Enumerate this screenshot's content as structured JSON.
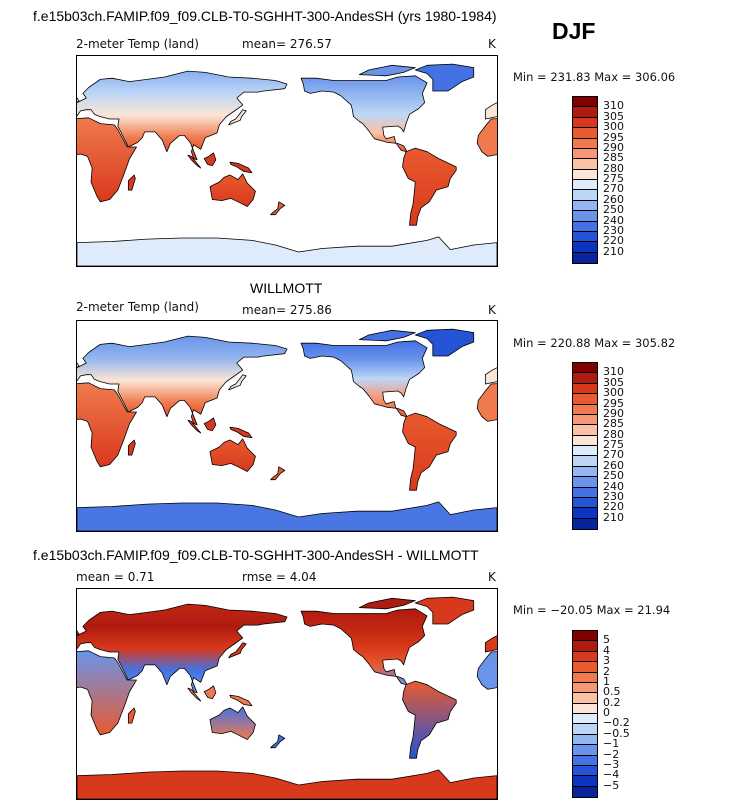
{
  "header": {
    "title": "f.e15b03ch.FAMIP.f09_f09.CLB-T0-SGHHT-300-AndesSH (yrs 1980-1984)",
    "season": "DJF"
  },
  "panels": [
    {
      "id": "model",
      "variable": "2-meter Temp (land)",
      "mean_text": "mean= 276.57",
      "units": "K",
      "minmax_text": "Min = 231.83 Max = 306.06",
      "colorbar": {
        "labels": [
          "310",
          "305",
          "300",
          "295",
          "290",
          "285",
          "280",
          "275",
          "270",
          "260",
          "250",
          "240",
          "230",
          "220",
          "210"
        ],
        "colors": [
          "#800000",
          "#b01a10",
          "#d8391c",
          "#e85a2f",
          "#f07a4e",
          "#f69878",
          "#f9c2a4",
          "#fbe5d6",
          "#ddebfa",
          "#bdd6f6",
          "#93b6f0",
          "#6994ea",
          "#4472e4",
          "#2453d6",
          "#0c34bf",
          "#08239b"
        ]
      }
    },
    {
      "id": "obs",
      "label": "WILLMOTT",
      "variable": "2-meter Temp (land)",
      "mean_text": "mean= 275.86",
      "units": "K",
      "minmax_text": "Min = 220.88 Max = 305.82",
      "colorbar": {
        "labels": [
          "310",
          "305",
          "300",
          "295",
          "290",
          "285",
          "280",
          "275",
          "270",
          "260",
          "250",
          "240",
          "230",
          "220",
          "210"
        ],
        "colors": [
          "#800000",
          "#b01a10",
          "#d8391c",
          "#e85a2f",
          "#f07a4e",
          "#f69878",
          "#f9c2a4",
          "#fbe5d6",
          "#ddebfa",
          "#bdd6f6",
          "#93b6f0",
          "#6994ea",
          "#4472e4",
          "#2453d6",
          "#0c34bf",
          "#08239b"
        ]
      }
    },
    {
      "id": "diff",
      "label": "f.e15b03ch.FAMIP.f09_f09.CLB-T0-SGHHT-300-AndesSH - WILLMOTT",
      "mean_text": "mean =    0.71",
      "rmse_text": "rmse =    4.04",
      "units": "K",
      "minmax_text": "Min = −20.05 Max =  21.94",
      "colorbar": {
        "labels": [
          "5",
          "4",
          "3",
          "2",
          "1",
          "0.5",
          "0.2",
          "0",
          "−0.2",
          "−0.5",
          "−1",
          "−2",
          "−3",
          "−4",
          "−5"
        ],
        "colors": [
          "#800000",
          "#b01a10",
          "#d8391c",
          "#e85a2f",
          "#f07a4e",
          "#f69878",
          "#f9c2a4",
          "#fbe5d6",
          "#ddebfa",
          "#bdd6f6",
          "#93b6f0",
          "#6994ea",
          "#4472e4",
          "#2453d6",
          "#0c34bf",
          "#08239b"
        ]
      }
    }
  ]
}
